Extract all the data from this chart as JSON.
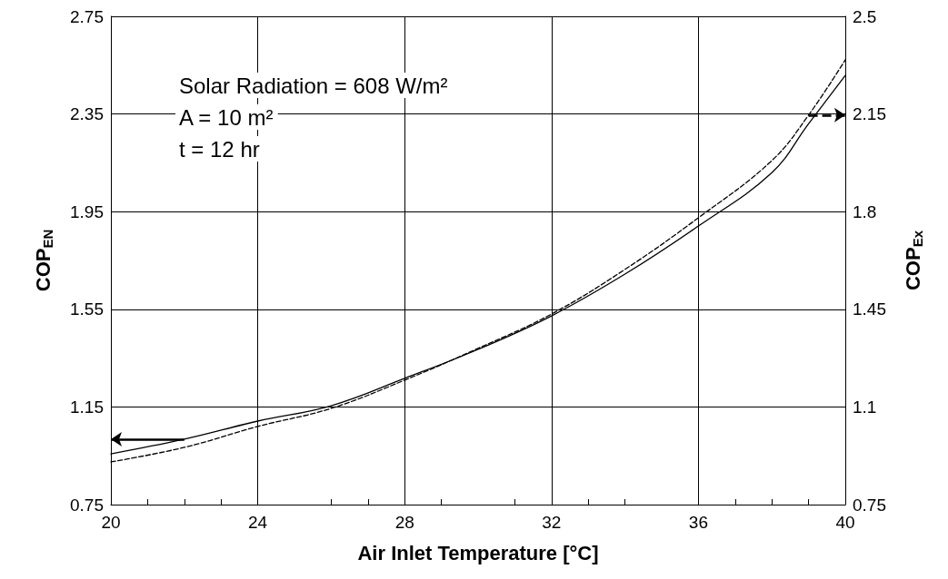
{
  "chart_data": {
    "type": "line",
    "xlabel": "Air Inlet Temperature [°C]",
    "ylabel": "COP$_{EN}$",
    "y2label": "COP$_{Ex}$",
    "annotations": [
      "Solar Radiation = 608 W/m²",
      "A = 10 m²",
      "t = 12 hr"
    ],
    "x": [
      20,
      22,
      24,
      26,
      28,
      30,
      32,
      34,
      36,
      38,
      39,
      40
    ],
    "series": [
      {
        "color": "#000000",
        "line_style": "solid",
        "values": [
          0.958,
          1.018,
          1.092,
          1.155,
          1.267,
          1.386,
          1.523,
          1.694,
          1.891,
          2.11,
          2.31,
          2.508
        ]
      },
      {
        "color": "#000000",
        "line_style": "dashed",
        "axis": "y2",
        "values": [
          0.903,
          0.955,
          1.03,
          1.095,
          1.196,
          1.31,
          1.433,
          1.593,
          1.778,
          1.983,
          2.146,
          2.344
        ]
      }
    ],
    "xlim": [
      20,
      40
    ],
    "xticks": [
      20,
      24,
      28,
      32,
      36,
      40
    ],
    "ylim": [
      0.75,
      2.75
    ],
    "yticks": [
      0.75,
      1.15,
      1.55,
      1.95,
      2.35,
      2.75
    ],
    "y2lim": [
      0.75,
      2.5
    ],
    "y2ticks": [
      0.75,
      1.1,
      1.45,
      1.8,
      2.15,
      2.5
    ],
    "grid": true,
    "marker": "none"
  }
}
